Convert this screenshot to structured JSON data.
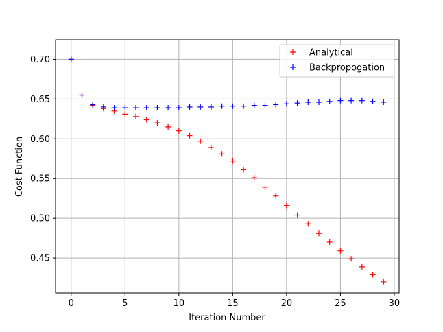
{
  "chart_data": {
    "type": "scatter",
    "title": "",
    "xlabel": "Iteration Number",
    "ylabel": "Cost Function",
    "xlim": [
      -1.45,
      30.45
    ],
    "ylim": [
      0.4061,
      0.7245
    ],
    "xticks": [
      0,
      5,
      10,
      15,
      20,
      25,
      30
    ],
    "yticks": [
      0.45,
      0.5,
      0.55,
      0.6,
      0.65,
      0.7
    ],
    "ytick_labels": [
      "0.45",
      "0.50",
      "0.55",
      "0.60",
      "0.65",
      "0.70"
    ],
    "grid": true,
    "legend_position": "top-right",
    "marker": "+",
    "series": [
      {
        "name": "Analytical",
        "color": "#ff0000",
        "x": [
          0,
          1,
          2,
          3,
          4,
          5,
          6,
          7,
          8,
          9,
          10,
          11,
          12,
          13,
          14,
          15,
          16,
          17,
          18,
          19,
          20,
          21,
          22,
          23,
          24,
          25,
          26,
          27,
          28,
          29
        ],
        "values": [
          0.7,
          0.655,
          0.642,
          0.638,
          0.635,
          0.631,
          0.628,
          0.624,
          0.62,
          0.615,
          0.61,
          0.604,
          0.597,
          0.589,
          0.581,
          0.572,
          0.561,
          0.551,
          0.539,
          0.528,
          0.516,
          0.504,
          0.493,
          0.481,
          0.47,
          0.459,
          0.449,
          0.439,
          0.429,
          0.42
        ]
      },
      {
        "name": "Backpropogation",
        "color": "#0000ff",
        "x": [
          0,
          1,
          2,
          3,
          4,
          5,
          6,
          7,
          8,
          9,
          10,
          11,
          12,
          13,
          14,
          15,
          16,
          17,
          18,
          19,
          20,
          21,
          22,
          23,
          24,
          25,
          26,
          27,
          28,
          29
        ],
        "values": [
          0.7,
          0.655,
          0.643,
          0.64,
          0.639,
          0.639,
          0.639,
          0.639,
          0.639,
          0.639,
          0.639,
          0.64,
          0.64,
          0.64,
          0.641,
          0.641,
          0.641,
          0.642,
          0.642,
          0.643,
          0.644,
          0.645,
          0.646,
          0.646,
          0.647,
          0.648,
          0.648,
          0.648,
          0.647,
          0.646
        ]
      }
    ]
  }
}
